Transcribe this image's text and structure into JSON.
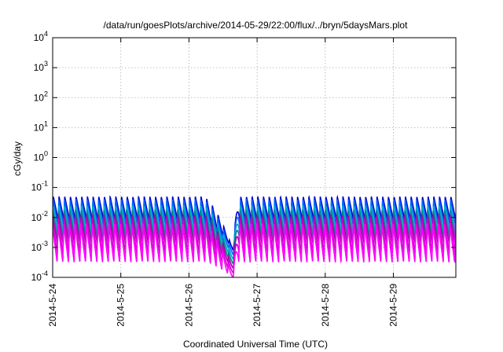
{
  "chart_data": {
    "type": "line",
    "title": "/data/run/goesPlots/archive/2014-05-29/22:00/flux/../bryn/5daysMars.plot",
    "xlabel": "Coordinated Universal Time (UTC)",
    "ylabel": "cGy/day",
    "yscale": "log",
    "ylim_exponents": [
      -4,
      4
    ],
    "yticks": [
      {
        "base": "10",
        "exp": "-4"
      },
      {
        "base": "10",
        "exp": "-3"
      },
      {
        "base": "10",
        "exp": "-2"
      },
      {
        "base": "10",
        "exp": "-1"
      },
      {
        "base": "10",
        "exp": "0"
      },
      {
        "base": "10",
        "exp": "1"
      },
      {
        "base": "10",
        "exp": "2"
      },
      {
        "base": "10",
        "exp": "3"
      },
      {
        "base": "10",
        "exp": "4"
      }
    ],
    "xticks": [
      "2014-5-24",
      "2014-5-25",
      "2014-5-26",
      "2014-5-27",
      "2014-5-28",
      "2014-5-29"
    ],
    "xlim": [
      "2014-05-24 00:00",
      "2014-05-29 22:00"
    ],
    "grid": true,
    "pattern": {
      "cycles_per_day": 12,
      "dip_center_day": 2.65,
      "dip_min_exponent": -4.0
    },
    "series": [
      {
        "color": "#0000cc",
        "peak_exponent": -1.3,
        "trough_exponent": -2.1
      },
      {
        "color": "#0066ff",
        "peak_exponent": -1.4,
        "trough_exponent": -2.3
      },
      {
        "color": "#00aacc",
        "peak_exponent": -1.6,
        "trough_exponent": -2.5
      },
      {
        "color": "#008888",
        "peak_exponent": -1.75,
        "trough_exponent": -2.7
      },
      {
        "color": "#aa00aa",
        "peak_exponent": -1.9,
        "trough_exponent": -2.9
      },
      {
        "color": "#cc00cc",
        "peak_exponent": -2.05,
        "trough_exponent": -3.2
      },
      {
        "color": "#ff00ff",
        "peak_exponent": -2.2,
        "trough_exponent": -3.5
      }
    ]
  }
}
